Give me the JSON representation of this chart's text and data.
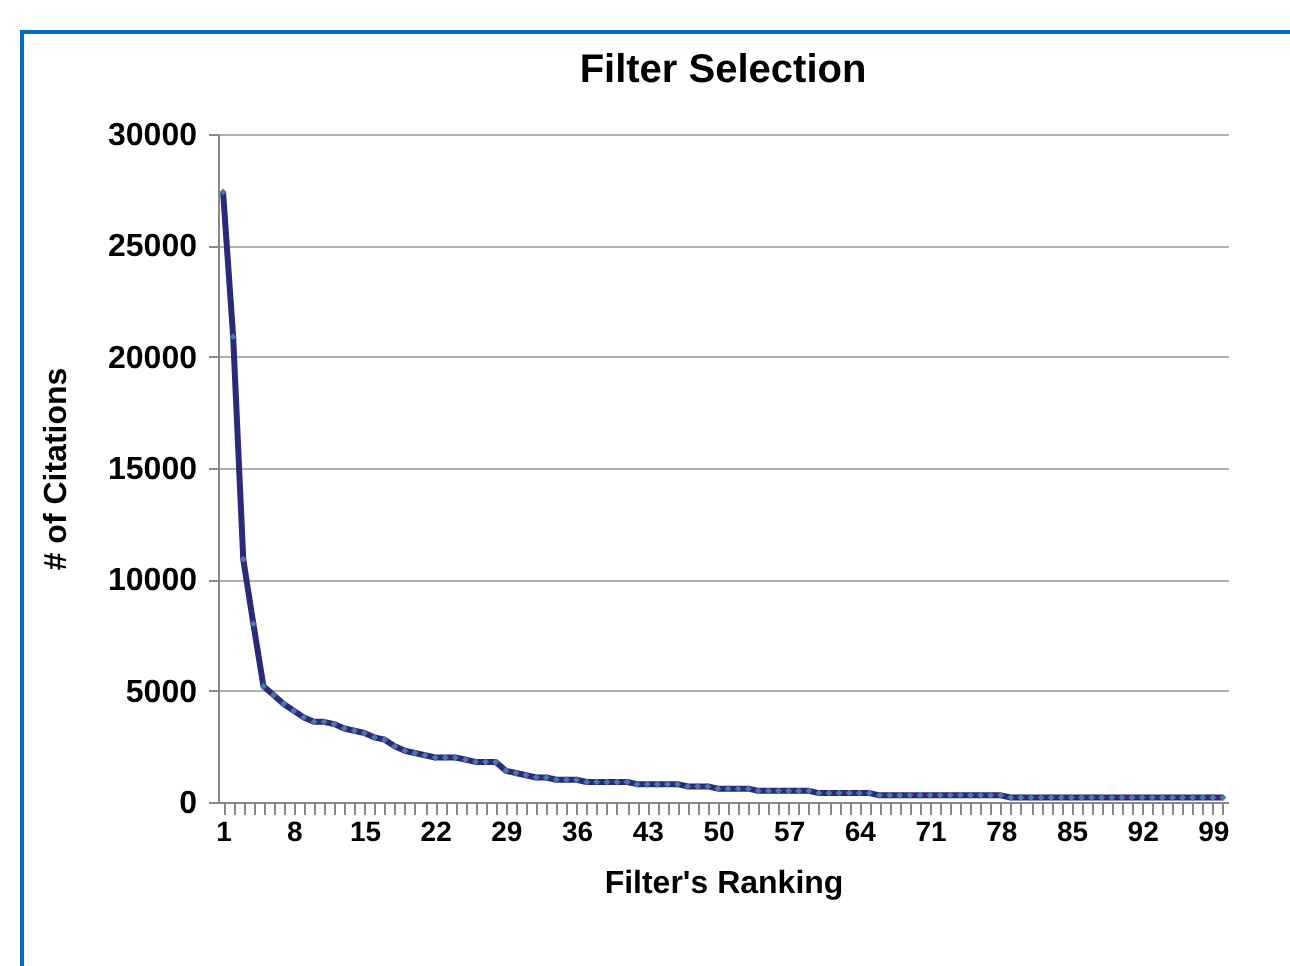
{
  "chart_data": {
    "type": "line",
    "title": "Filter Selection",
    "xlabel": "Filter's Ranking",
    "ylabel": "# of Citations",
    "categories": [
      "1",
      null,
      null,
      null,
      null,
      null,
      null,
      "8",
      null,
      null,
      null,
      null,
      null,
      null,
      "15",
      null,
      null,
      null,
      null,
      null,
      null,
      "22",
      null,
      null,
      null,
      null,
      null,
      null,
      "29",
      null,
      null,
      null,
      null,
      null,
      null,
      "36",
      null,
      null,
      null,
      null,
      null,
      null,
      "43",
      null,
      null,
      null,
      null,
      null,
      null,
      "50",
      null,
      null,
      null,
      null,
      null,
      null,
      "57",
      null,
      null,
      null,
      null,
      null,
      null,
      "64",
      null,
      null,
      null,
      null,
      null,
      null,
      "71",
      null,
      null,
      null,
      null,
      null,
      null,
      "78",
      null,
      null,
      null,
      null,
      null,
      null,
      "85",
      null,
      null,
      null,
      null,
      null,
      null,
      "92",
      null,
      null,
      null,
      null,
      null,
      null,
      "99",
      null
    ],
    "series": [
      {
        "color": "#2b2a7a",
        "values": [
          27400,
          20900,
          10900,
          8000,
          5200,
          4800,
          4400,
          4100,
          3800,
          3600,
          3600,
          3500,
          3300,
          3200,
          3100,
          2900,
          2800,
          2500,
          2300,
          2200,
          2100,
          2000,
          2000,
          2000,
          1900,
          1800,
          1800,
          1800,
          1400,
          1300,
          1200,
          1100,
          1100,
          1000,
          1000,
          1000,
          900,
          900,
          900,
          900,
          900,
          800,
          800,
          800,
          800,
          800,
          700,
          700,
          700,
          600,
          600,
          600,
          600,
          500,
          500,
          500,
          500,
          500,
          500,
          400,
          400,
          400,
          400,
          400,
          400,
          300,
          300,
          300,
          300,
          300,
          300,
          300,
          300,
          300,
          300,
          300,
          300,
          300,
          200,
          200,
          200,
          200,
          200,
          200,
          200,
          200,
          200,
          200,
          200,
          200,
          200,
          200,
          200,
          200,
          200,
          200,
          200,
          200,
          200,
          200
        ]
      }
    ],
    "ylim": [
      0,
      30000
    ],
    "yticks": [
      0,
      5000,
      10000,
      15000,
      20000,
      25000,
      30000
    ],
    "grid": "y",
    "marker": "diamond",
    "line_style": "solid"
  }
}
